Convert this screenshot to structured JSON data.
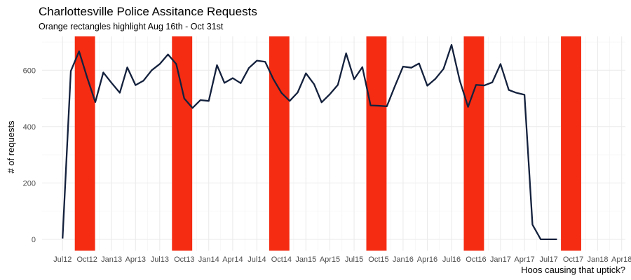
{
  "chart_data": {
    "type": "line",
    "title": "Charlottesville Police Assitance Requests",
    "subtitle": "Orange rectangles highlight Aug 16th - Oct 31st",
    "xlabel": "Hoos causing that uptick?",
    "ylabel": "# of requests",
    "ylim": [
      -40,
      720
    ],
    "xlim": [
      "2012-04-15",
      "2018-04-15"
    ],
    "yticks": [
      0,
      200,
      400,
      600
    ],
    "xticks": [
      {
        "date": "2012-07-01",
        "label": "Jul12"
      },
      {
        "date": "2012-10-01",
        "label": "Oct12"
      },
      {
        "date": "2013-01-01",
        "label": "Jan13"
      },
      {
        "date": "2013-04-01",
        "label": "Apr13"
      },
      {
        "date": "2013-07-01",
        "label": "Jul13"
      },
      {
        "date": "2013-10-01",
        "label": "Oct13"
      },
      {
        "date": "2014-01-01",
        "label": "Jan14"
      },
      {
        "date": "2014-04-01",
        "label": "Apr14"
      },
      {
        "date": "2014-07-01",
        "label": "Jul14"
      },
      {
        "date": "2014-10-01",
        "label": "Oct14"
      },
      {
        "date": "2015-01-01",
        "label": "Jan15"
      },
      {
        "date": "2015-04-01",
        "label": "Apr15"
      },
      {
        "date": "2015-07-01",
        "label": "Jul15"
      },
      {
        "date": "2015-10-01",
        "label": "Oct15"
      },
      {
        "date": "2016-01-01",
        "label": "Jan16"
      },
      {
        "date": "2016-04-01",
        "label": "Apr16"
      },
      {
        "date": "2016-07-01",
        "label": "Jul16"
      },
      {
        "date": "2016-10-01",
        "label": "Oct16"
      },
      {
        "date": "2017-01-01",
        "label": "Jan17"
      },
      {
        "date": "2017-04-01",
        "label": "Apr17"
      },
      {
        "date": "2017-07-01",
        "label": "Jul17"
      },
      {
        "date": "2017-10-01",
        "label": "Oct17"
      },
      {
        "date": "2018-01-01",
        "label": "Jan18"
      },
      {
        "date": "2018-04-01",
        "label": "Apr18"
      }
    ],
    "grid": true,
    "highlight_color": "#f52b12",
    "line_color": "#14213d",
    "highlights": [
      {
        "start": "2012-08-16",
        "end": "2012-10-31"
      },
      {
        "start": "2013-08-16",
        "end": "2013-10-31"
      },
      {
        "start": "2014-08-16",
        "end": "2014-10-31"
      },
      {
        "start": "2015-08-16",
        "end": "2015-10-31"
      },
      {
        "start": "2016-08-16",
        "end": "2016-10-31"
      },
      {
        "start": "2017-08-16",
        "end": "2017-10-31"
      }
    ],
    "series": [
      {
        "x": [
          "2012-07-01",
          "2012-08-01",
          "2012-09-01",
          "2012-10-01",
          "2012-11-01",
          "2012-12-01",
          "2013-01-01",
          "2013-02-01",
          "2013-03-01",
          "2013-04-01",
          "2013-05-01",
          "2013-06-01",
          "2013-07-01",
          "2013-08-01",
          "2013-09-01",
          "2013-10-01",
          "2013-11-01",
          "2013-12-01",
          "2014-01-01",
          "2014-02-01",
          "2014-03-01",
          "2014-04-01",
          "2014-05-01",
          "2014-06-01",
          "2014-07-01",
          "2014-08-01",
          "2014-09-01",
          "2014-10-01",
          "2014-11-01",
          "2014-12-01",
          "2015-01-01",
          "2015-02-01",
          "2015-03-01",
          "2015-04-01",
          "2015-05-01",
          "2015-06-01",
          "2015-07-01",
          "2015-08-01",
          "2015-09-01",
          "2015-10-01",
          "2015-11-01",
          "2015-12-01",
          "2016-01-01",
          "2016-02-01",
          "2016-03-01",
          "2016-04-01",
          "2016-05-01",
          "2016-06-01",
          "2016-07-01",
          "2016-08-01",
          "2016-09-01",
          "2016-10-01",
          "2016-11-01",
          "2016-12-01",
          "2017-01-01",
          "2017-02-01",
          "2017-03-01",
          "2017-04-01",
          "2017-05-01",
          "2017-06-01",
          "2017-07-01",
          "2017-08-01",
          "2017-09-01",
          "2017-10-01",
          "2017-11-01",
          "2017-12-01"
        ],
        "values": [
          3,
          597,
          667,
          575,
          487,
          592,
          555,
          520,
          610,
          547,
          563,
          600,
          622,
          656,
          622,
          500,
          466,
          494,
          491,
          618,
          555,
          572,
          554,
          608,
          634,
          630,
          568,
          520,
          491,
          521,
          589,
          550,
          486,
          515,
          548,
          660,
          568,
          611,
          475,
          474,
          472,
          543,
          613,
          609,
          624,
          545,
          569,
          605,
          690,
          563,
          470,
          548,
          546,
          557,
          622,
          530,
          520,
          513,
          52,
          0,
          0,
          0,
          null,
          null,
          null,
          null
        ]
      }
    ]
  }
}
